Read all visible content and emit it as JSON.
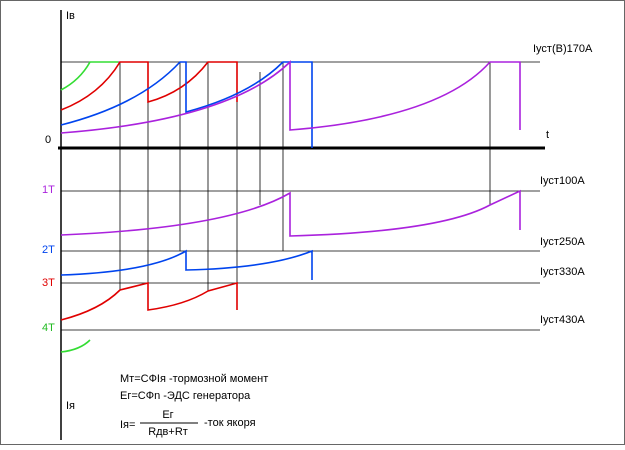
{
  "axes": {
    "y_top": "Iв",
    "y_bottom": "Iя",
    "origin": "0",
    "x": "t"
  },
  "levels": {
    "top": "Iуст(В)170А",
    "l1": "Iуст100А",
    "l2": "Iуст250А",
    "l3": "Iуст330А",
    "l4": "Iуст430А"
  },
  "stages": [
    "1Т",
    "2Т",
    "3Т",
    "4Т"
  ],
  "formulas": {
    "torque": "Mт=СФIя -тормозной момент",
    "emf": "Ег=СФn -ЭДС генератора",
    "current_lhs": "Iя=",
    "current_num": "Ег",
    "current_den": "Rдв+Rт",
    "current_rhs": "-ток якоря"
  }
}
